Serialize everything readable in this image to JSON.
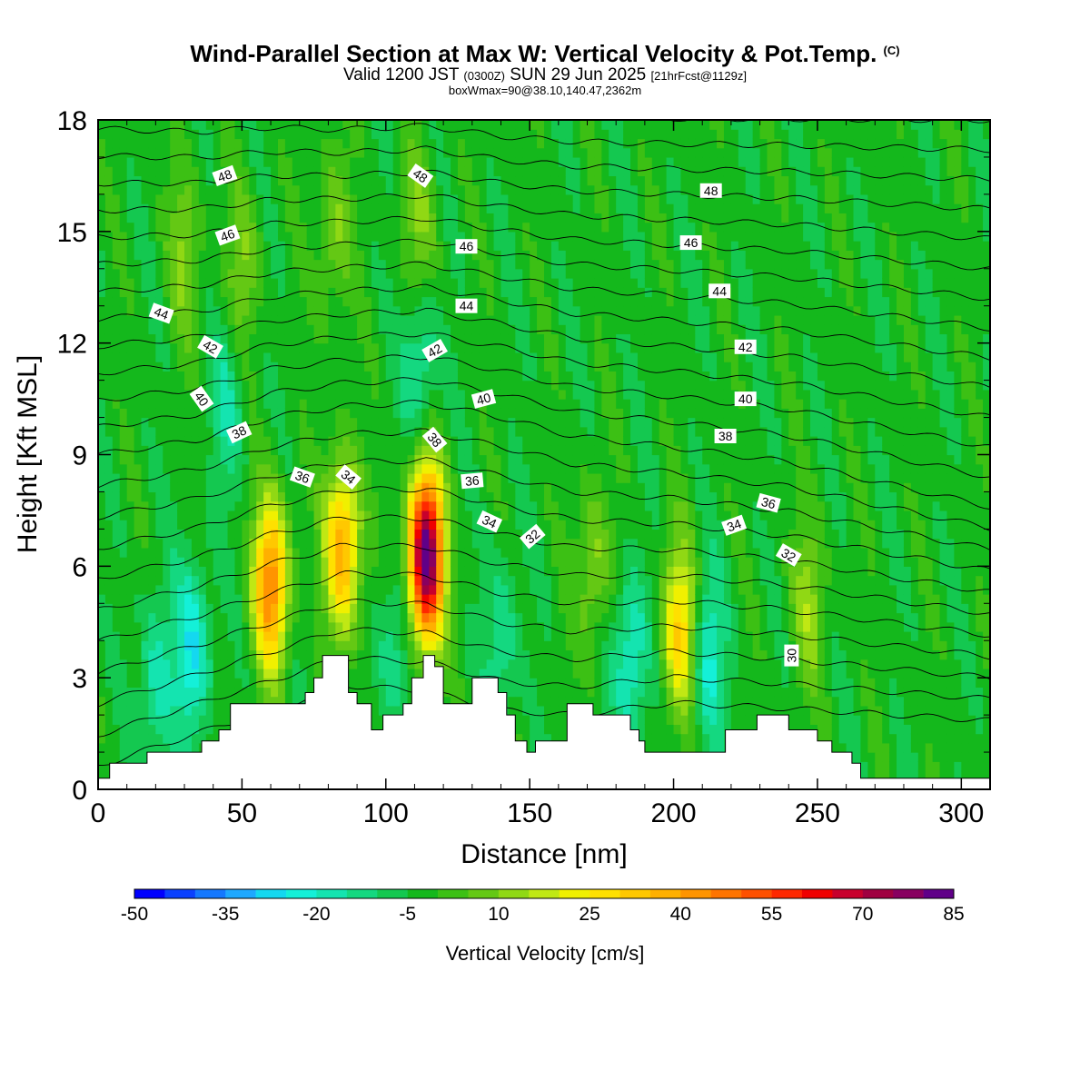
{
  "header": {
    "title": "Wind-Parallel Section at Max W: Vertical Velocity & Pot.Temp.",
    "copyright": "(C)",
    "valid_prefix": "Valid 1200 JST",
    "utc": "(0300Z)",
    "valid_date": "SUN 29 Jun 2025",
    "forecast": "[21hrFcst@1129z]",
    "box_info": "boxWmax=90@38.10,140.47,2362m"
  },
  "chart_data": {
    "type": "heatmap",
    "xlabel": "Distance [nm]",
    "ylabel": "Height [Kft MSL]",
    "xlim": [
      0,
      310
    ],
    "ylim": [
      0,
      18
    ],
    "xticks": [
      0,
      50,
      100,
      150,
      200,
      250,
      300
    ],
    "yticks": [
      0,
      3,
      6,
      9,
      12,
      15,
      18
    ],
    "colorbar": {
      "label": "Vertical Velocity [cm/s]",
      "min": -50,
      "max": 85,
      "step": 5,
      "tick_labels": [
        "-50",
        "-35",
        "-20",
        "-5",
        "10",
        "25",
        "40",
        "55",
        "70",
        "85"
      ],
      "colors": [
        "#0000ff",
        "#0a40ff",
        "#1478ff",
        "#1ea8ff",
        "#14d8f0",
        "#14f0d8",
        "#14e4b0",
        "#14d880",
        "#14c850",
        "#14b81c",
        "#3cc014",
        "#64c814",
        "#90d814",
        "#c0e814",
        "#f0f000",
        "#ffe000",
        "#ffc800",
        "#ffb000",
        "#ff9400",
        "#ff7400",
        "#ff5000",
        "#ff2800",
        "#f00000",
        "#c8002c",
        "#a00040",
        "#880060",
        "#600088"
      ]
    },
    "background_value": -3,
    "updraft_cells": [
      {
        "x": 60,
        "z": 5.5,
        "peak": 45
      },
      {
        "x": 85,
        "z": 6.5,
        "peak": 40
      },
      {
        "x": 114,
        "z": 6.3,
        "peak": 85
      },
      {
        "x": 202,
        "z": 4.3,
        "peak": 30
      },
      {
        "x": 30,
        "z": 14.5,
        "peak": 10
      },
      {
        "x": 50,
        "z": 14,
        "peak": 10
      },
      {
        "x": 82,
        "z": 15,
        "peak": 10
      },
      {
        "x": 112,
        "z": 15,
        "peak": 10
      },
      {
        "x": 247,
        "z": 5,
        "peak": 12
      },
      {
        "x": 172,
        "z": 6,
        "peak": 12
      }
    ],
    "downdraft_cells": [
      {
        "x": 33,
        "z": 3.8,
        "peak": -25
      },
      {
        "x": 20,
        "z": 2.8,
        "peak": -18
      },
      {
        "x": 185,
        "z": 3.5,
        "peak": -22
      },
      {
        "x": 212,
        "z": 3.5,
        "peak": -22
      },
      {
        "x": 103,
        "z": 3.8,
        "peak": -15
      },
      {
        "x": 140,
        "z": 4,
        "peak": -15
      },
      {
        "x": 45,
        "z": 10.5,
        "peak": -15
      },
      {
        "x": 112,
        "z": 11.5,
        "peak": -18
      }
    ],
    "terrain": [
      [
        0,
        0.3
      ],
      [
        4,
        0.7
      ],
      [
        17,
        1.0
      ],
      [
        36,
        1.3
      ],
      [
        42,
        1.6
      ],
      [
        46,
        2.3
      ],
      [
        72,
        2.6
      ],
      [
        75,
        3.0
      ],
      [
        78,
        3.6
      ],
      [
        82,
        3.6
      ],
      [
        87,
        2.6
      ],
      [
        90,
        2.3
      ],
      [
        95,
        1.6
      ],
      [
        99,
        2.0
      ],
      [
        106,
        2.3
      ],
      [
        109,
        3.0
      ],
      [
        113,
        3.6
      ],
      [
        117,
        3.3
      ],
      [
        120,
        2.3
      ],
      [
        130,
        3.0
      ],
      [
        139,
        2.6
      ],
      [
        142,
        2.0
      ],
      [
        145,
        1.3
      ],
      [
        149,
        1.0
      ],
      [
        152,
        1.3
      ],
      [
        163,
        2.3
      ],
      [
        172,
        2.0
      ],
      [
        185,
        1.6
      ],
      [
        188,
        1.3
      ],
      [
        190,
        1.0
      ],
      [
        203,
        1.0
      ],
      [
        215,
        1.0
      ],
      [
        218,
        1.6
      ],
      [
        229,
        2.0
      ],
      [
        240,
        1.6
      ],
      [
        250,
        1.3
      ],
      [
        255,
        1.0
      ],
      [
        262,
        0.7
      ],
      [
        265,
        0.3
      ],
      [
        310,
        0.3
      ]
    ],
    "isentrope_levels": [
      28,
      29,
      30,
      31,
      32,
      33,
      34,
      35,
      36,
      37,
      38,
      39,
      40,
      41,
      42,
      43,
      44,
      45,
      46,
      47,
      48,
      49,
      50,
      51
    ],
    "isentrope_profile_heights": {
      "x": [
        0,
        35,
        60,
        85,
        114,
        140,
        165,
        200,
        240,
        310
      ],
      "30": [
        2.3,
        3.1,
        3.7,
        4.3,
        4.2,
        3.7,
        3.5,
        3.7,
        3.5,
        3.0
      ],
      "38": [
        9.0,
        9.4,
        10.0,
        10.3,
        10.4,
        10.0,
        9.5,
        9.2,
        8.8,
        7.6
      ],
      "48": [
        16.3,
        16.3,
        16.5,
        16.5,
        16.6,
        16.3,
        16.1,
        16.0,
        15.9,
        15.6
      ]
    },
    "contour_labels": [
      {
        "text": "48",
        "x": 44,
        "z": 16.5,
        "angle": -20
      },
      {
        "text": "48",
        "x": 112,
        "z": 16.5,
        "angle": 35
      },
      {
        "text": "48",
        "x": 213,
        "z": 16.1,
        "angle": 0
      },
      {
        "text": "46",
        "x": 45,
        "z": 14.9,
        "angle": -20
      },
      {
        "text": "46",
        "x": 128,
        "z": 14.6,
        "angle": 0
      },
      {
        "text": "46",
        "x": 206,
        "z": 14.7,
        "angle": 0
      },
      {
        "text": "44",
        "x": 22,
        "z": 12.8,
        "angle": 20
      },
      {
        "text": "44",
        "x": 128,
        "z": 13.0,
        "angle": 0
      },
      {
        "text": "44",
        "x": 216,
        "z": 13.4,
        "angle": 0
      },
      {
        "text": "42",
        "x": 39,
        "z": 11.9,
        "angle": 30
      },
      {
        "text": "42",
        "x": 117,
        "z": 11.8,
        "angle": -30
      },
      {
        "text": "42",
        "x": 225,
        "z": 11.9,
        "angle": 0
      },
      {
        "text": "40",
        "x": 36,
        "z": 10.5,
        "angle": 55
      },
      {
        "text": "40",
        "x": 134,
        "z": 10.5,
        "angle": -15
      },
      {
        "text": "40",
        "x": 225,
        "z": 10.5,
        "angle": 0
      },
      {
        "text": "38",
        "x": 49,
        "z": 9.6,
        "angle": -25
      },
      {
        "text": "38",
        "x": 117,
        "z": 9.4,
        "angle": 50
      },
      {
        "text": "38",
        "x": 218,
        "z": 9.5,
        "angle": 0
      },
      {
        "text": "36",
        "x": 71,
        "z": 8.4,
        "angle": 20
      },
      {
        "text": "36",
        "x": 130,
        "z": 8.3,
        "angle": -5
      },
      {
        "text": "36",
        "x": 233,
        "z": 7.7,
        "angle": 15
      },
      {
        "text": "34",
        "x": 87,
        "z": 8.4,
        "angle": 40
      },
      {
        "text": "34",
        "x": 136,
        "z": 7.2,
        "angle": 25
      },
      {
        "text": "34",
        "x": 221,
        "z": 7.1,
        "angle": -20
      },
      {
        "text": "32",
        "x": 151,
        "z": 6.8,
        "angle": -40
      },
      {
        "text": "32",
        "x": 240,
        "z": 6.3,
        "angle": 30
      },
      {
        "text": "30",
        "x": 241,
        "z": 3.6,
        "angle": -90
      }
    ]
  }
}
